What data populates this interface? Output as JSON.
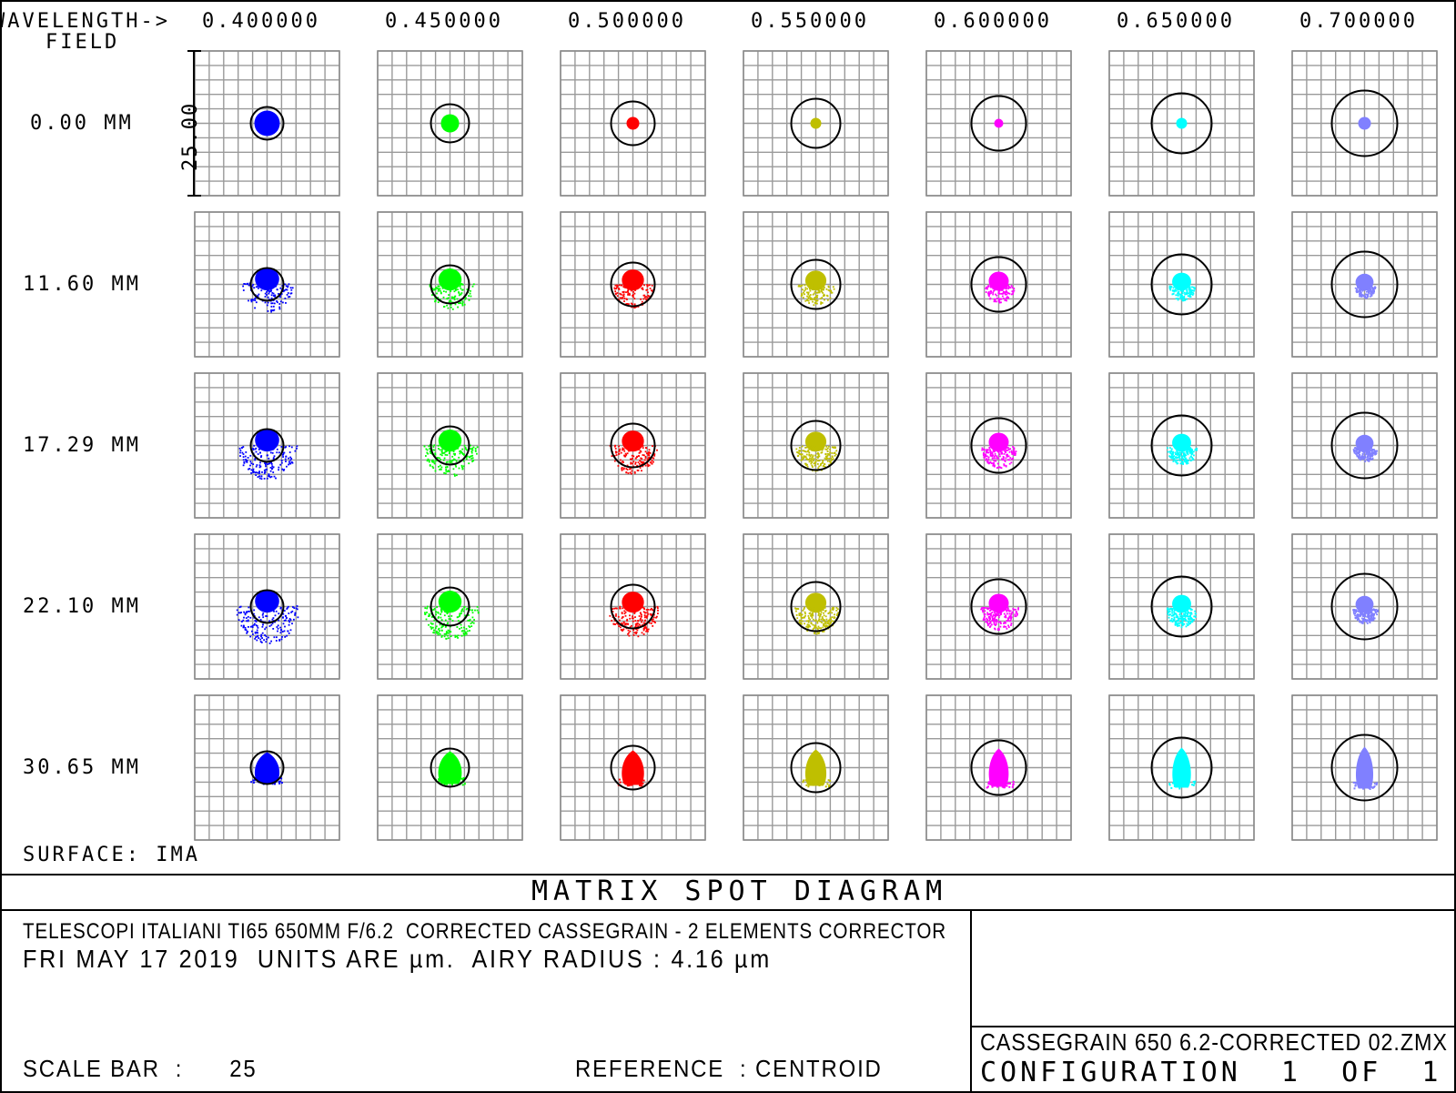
{
  "header": {
    "wavelength_label": "WAVELENGTH->",
    "field_label": "FIELD"
  },
  "wavelengths": [
    "0.400000",
    "0.450000",
    "0.500000",
    "0.550000",
    "0.600000",
    "0.650000",
    "0.700000"
  ],
  "fields": [
    "0.00 MM",
    "11.60 MM",
    "17.29 MM",
    "22.10 MM",
    "30.65 MM"
  ],
  "colors": [
    "#0000ff",
    "#00ff00",
    "#ff0000",
    "#bfbf00",
    "#ff00ff",
    "#00ffff",
    "#8080ff"
  ],
  "airy_radius_by_wavelength": [
    1.0,
    1.1,
    1.2,
    1.35,
    1.45,
    1.6,
    1.7
  ],
  "scale_bar_label": "25.00",
  "surface_label": "SURFACE: IMA",
  "title": "MATRIX SPOT DIAGRAM",
  "info": {
    "line1": "TELESCOPI ITALIANI TI65 650MM F/6.2  CORRECTED CASSEGRAIN - 2 ELEMENTS CORRECTOR",
    "line2": "FRI MAY 17 2019  UNITS ARE µm.  AIRY RADIUS : 4.16 µm",
    "scale_bar": "SCALE BAR  :      25",
    "reference": "REFERENCE  : CENTROID"
  },
  "file": {
    "name": "CASSEGRAIN 650 6.2-CORRECTED 02.ZMX",
    "configuration": "CONFIGURATION  1  OF  1"
  }
}
